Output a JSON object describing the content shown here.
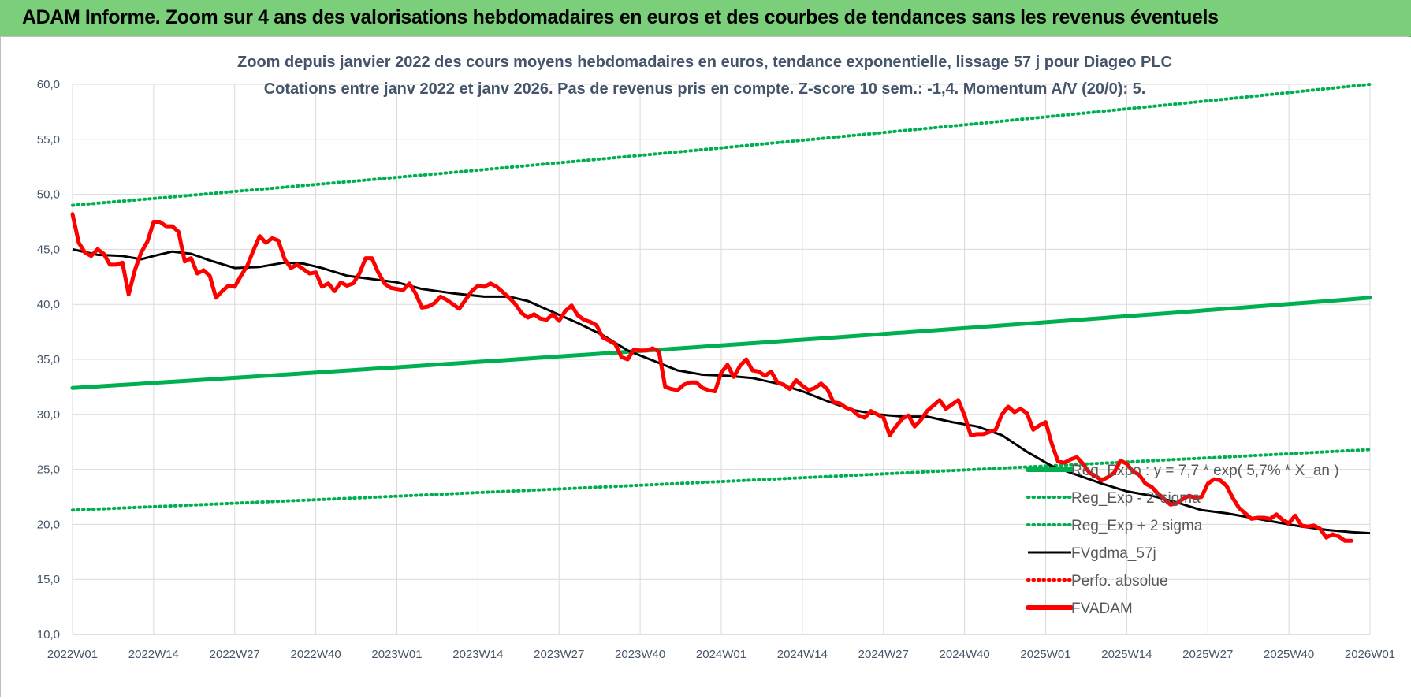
{
  "banner": {
    "title": "ADAM Informe. Zoom sur 4 ans des valorisations hebdomadaires en euros et des courbes de tendances sans les revenus éventuels"
  },
  "colors": {
    "banner_bg": "#7ccf7a",
    "green": "#00b050",
    "black": "#000000",
    "red": "#ff0000",
    "grid": "#d9d9d9",
    "title_text": "#44546a"
  },
  "chart_data": {
    "type": "line",
    "title": "Zoom depuis janvier 2022 des cours moyens hebdomadaires en euros, tendance exponentielle, lissage 57 j pour Diageo PLC",
    "subtitle": "Cotations entre janv 2022 et janv 2026. Pas de revenus pris en compte. Z-score 10 sem.: -1,4. Momentum A/V (20/0): 5.",
    "xlabel": "",
    "ylabel": "",
    "ylim": [
      10,
      60
    ],
    "yticks": [
      "10,0",
      "15,0",
      "20,0",
      "25,0",
      "30,0",
      "35,0",
      "40,0",
      "45,0",
      "50,0",
      "55,0",
      "60,0"
    ],
    "xticks": [
      "2022W01",
      "2022W14",
      "2022W27",
      "2022W40",
      "2023W01",
      "2023W14",
      "2023W27",
      "2023W40",
      "2024W01",
      "2024W14",
      "2024W27",
      "2024W40",
      "2025W01",
      "2025W14",
      "2025W27",
      "2025W40",
      "2026W01"
    ],
    "grid": true,
    "legend_position": "bottom-right",
    "series": [
      {
        "name": "Reg_Expo : y = 7,7 * exp( 5,7% *  X_an )",
        "style": "solid-thick",
        "color": "#00b050",
        "points": [
          [
            0,
            32.4
          ],
          [
            208,
            40.6
          ]
        ]
      },
      {
        "name": "Reg_Exp - 2*sigma",
        "style": "dotted",
        "color": "#00b050",
        "points": [
          [
            0,
            21.3
          ],
          [
            208,
            26.8
          ]
        ]
      },
      {
        "name": "Reg_Exp + 2 sigma",
        "style": "dotted",
        "color": "#00b050",
        "points": [
          [
            0,
            49.0
          ],
          [
            208,
            60.0
          ]
        ]
      },
      {
        "name": "FVgdma_57j",
        "style": "solid",
        "color": "#000000",
        "points": [
          [
            0,
            45.0
          ],
          [
            4,
            44.5
          ],
          [
            8,
            44.4
          ],
          [
            11,
            44.1
          ],
          [
            13,
            44.4
          ],
          [
            16,
            44.8
          ],
          [
            19,
            44.6
          ],
          [
            22,
            44.0
          ],
          [
            26,
            43.3
          ],
          [
            30,
            43.4
          ],
          [
            34,
            43.8
          ],
          [
            37,
            43.7
          ],
          [
            40,
            43.3
          ],
          [
            44,
            42.6
          ],
          [
            48,
            42.3
          ],
          [
            52,
            42.0
          ],
          [
            56,
            41.4
          ],
          [
            61,
            41.0
          ],
          [
            66,
            40.7
          ],
          [
            70,
            40.7
          ],
          [
            73,
            40.3
          ],
          [
            77,
            39.3
          ],
          [
            81,
            38.3
          ],
          [
            85,
            37.2
          ],
          [
            89,
            35.8
          ],
          [
            93,
            34.9
          ],
          [
            97,
            34.0
          ],
          [
            101,
            33.6
          ],
          [
            105,
            33.5
          ],
          [
            109,
            33.3
          ],
          [
            113,
            32.8
          ],
          [
            117,
            32.1
          ],
          [
            121,
            31.2
          ],
          [
            125,
            30.4
          ],
          [
            129,
            30.0
          ],
          [
            133,
            29.8
          ],
          [
            137,
            29.8
          ],
          [
            141,
            29.3
          ],
          [
            145,
            28.9
          ],
          [
            149,
            28.1
          ],
          [
            153,
            26.6
          ],
          [
            157,
            25.3
          ],
          [
            161,
            24.5
          ],
          [
            165,
            23.7
          ],
          [
            169,
            23.0
          ],
          [
            173,
            22.6
          ],
          [
            177,
            22.0
          ],
          [
            181,
            21.3
          ],
          [
            185,
            21.0
          ],
          [
            189,
            20.6
          ],
          [
            193,
            20.2
          ],
          [
            197,
            19.8
          ],
          [
            201,
            19.5
          ],
          [
            205,
            19.3
          ],
          [
            208,
            19.2
          ]
        ]
      },
      {
        "name": "Perfo. absolue",
        "style": "dotted",
        "color": "#ff0000",
        "points": []
      },
      {
        "name": "FVADAM",
        "style": "solid-thick",
        "color": "#ff0000",
        "points": [
          [
            0,
            48.2
          ],
          [
            1,
            45.6
          ],
          [
            2,
            44.7
          ],
          [
            3,
            44.4
          ],
          [
            4,
            45.0
          ],
          [
            5,
            44.6
          ],
          [
            6,
            43.6
          ],
          [
            7,
            43.6
          ],
          [
            8,
            43.8
          ],
          [
            9,
            40.9
          ],
          [
            10,
            43.1
          ],
          [
            11,
            44.7
          ],
          [
            12,
            45.7
          ],
          [
            13,
            47.5
          ],
          [
            14,
            47.5
          ],
          [
            15,
            47.1
          ],
          [
            16,
            47.1
          ],
          [
            17,
            46.6
          ],
          [
            18,
            43.9
          ],
          [
            19,
            44.2
          ],
          [
            20,
            42.8
          ],
          [
            21,
            43.1
          ],
          [
            22,
            42.6
          ],
          [
            23,
            40.6
          ],
          [
            24,
            41.2
          ],
          [
            25,
            41.7
          ],
          [
            26,
            41.6
          ],
          [
            27,
            42.6
          ],
          [
            28,
            43.5
          ],
          [
            29,
            44.9
          ],
          [
            30,
            46.2
          ],
          [
            31,
            45.6
          ],
          [
            32,
            46.0
          ],
          [
            33,
            45.8
          ],
          [
            34,
            44.1
          ],
          [
            35,
            43.3
          ],
          [
            36,
            43.6
          ],
          [
            37,
            43.2
          ],
          [
            38,
            42.8
          ],
          [
            39,
            42.9
          ],
          [
            40,
            41.6
          ],
          [
            41,
            41.9
          ],
          [
            42,
            41.2
          ],
          [
            43,
            42.0
          ],
          [
            44,
            41.7
          ],
          [
            45,
            41.9
          ],
          [
            46,
            42.8
          ],
          [
            47,
            44.2
          ],
          [
            48,
            44.2
          ],
          [
            49,
            42.9
          ],
          [
            50,
            41.9
          ],
          [
            51,
            41.5
          ],
          [
            52,
            41.4
          ],
          [
            53,
            41.3
          ],
          [
            54,
            41.9
          ],
          [
            55,
            41.0
          ],
          [
            56,
            39.7
          ],
          [
            57,
            39.8
          ],
          [
            58,
            40.1
          ],
          [
            59,
            40.7
          ],
          [
            60,
            40.4
          ],
          [
            61,
            40.0
          ],
          [
            62,
            39.6
          ],
          [
            63,
            40.4
          ],
          [
            64,
            41.2
          ],
          [
            65,
            41.7
          ],
          [
            66,
            41.6
          ],
          [
            67,
            41.9
          ],
          [
            68,
            41.6
          ],
          [
            69,
            41.1
          ],
          [
            70,
            40.6
          ],
          [
            71,
            40.0
          ],
          [
            72,
            39.2
          ],
          [
            73,
            38.8
          ],
          [
            74,
            39.1
          ],
          [
            75,
            38.7
          ],
          [
            76,
            38.6
          ],
          [
            77,
            39.1
          ],
          [
            78,
            38.5
          ],
          [
            79,
            39.4
          ],
          [
            80,
            39.9
          ],
          [
            81,
            39.0
          ],
          [
            82,
            38.6
          ],
          [
            83,
            38.4
          ],
          [
            84,
            38.1
          ],
          [
            85,
            37.0
          ],
          [
            86,
            36.7
          ],
          [
            87,
            36.4
          ],
          [
            88,
            35.2
          ],
          [
            89,
            35.0
          ],
          [
            90,
            35.9
          ],
          [
            91,
            35.8
          ],
          [
            92,
            35.8
          ],
          [
            93,
            36.0
          ],
          [
            94,
            35.7
          ],
          [
            95,
            32.5
          ],
          [
            96,
            32.3
          ],
          [
            97,
            32.2
          ],
          [
            98,
            32.7
          ],
          [
            99,
            32.9
          ],
          [
            100,
            32.9
          ],
          [
            101,
            32.4
          ],
          [
            102,
            32.2
          ],
          [
            103,
            32.1
          ],
          [
            104,
            33.8
          ],
          [
            105,
            34.5
          ],
          [
            106,
            33.4
          ],
          [
            107,
            34.4
          ],
          [
            108,
            35.0
          ],
          [
            109,
            34.0
          ],
          [
            110,
            33.9
          ],
          [
            111,
            33.5
          ],
          [
            112,
            33.9
          ],
          [
            113,
            32.9
          ],
          [
            114,
            32.7
          ],
          [
            115,
            32.3
          ],
          [
            116,
            33.1
          ],
          [
            117,
            32.6
          ],
          [
            118,
            32.2
          ],
          [
            119,
            32.4
          ],
          [
            120,
            32.8
          ],
          [
            121,
            32.3
          ],
          [
            122,
            31.1
          ],
          [
            123,
            31.0
          ],
          [
            124,
            30.6
          ],
          [
            125,
            30.4
          ],
          [
            126,
            29.9
          ],
          [
            127,
            29.7
          ],
          [
            128,
            30.3
          ],
          [
            129,
            30.0
          ],
          [
            130,
            29.7
          ],
          [
            131,
            28.1
          ],
          [
            132,
            28.9
          ],
          [
            133,
            29.6
          ],
          [
            134,
            29.9
          ],
          [
            135,
            28.9
          ],
          [
            136,
            29.5
          ],
          [
            137,
            30.3
          ],
          [
            138,
            30.8
          ],
          [
            139,
            31.3
          ],
          [
            140,
            30.5
          ],
          [
            141,
            30.9
          ],
          [
            142,
            31.3
          ],
          [
            143,
            29.9
          ],
          [
            144,
            28.1
          ],
          [
            145,
            28.2
          ],
          [
            146,
            28.2
          ],
          [
            147,
            28.4
          ],
          [
            148,
            28.6
          ],
          [
            149,
            30.0
          ],
          [
            150,
            30.7
          ],
          [
            151,
            30.2
          ],
          [
            152,
            30.5
          ],
          [
            153,
            30.1
          ],
          [
            154,
            28.6
          ],
          [
            155,
            29.0
          ],
          [
            156,
            29.3
          ],
          [
            157,
            27.3
          ],
          [
            158,
            25.7
          ],
          [
            159,
            25.6
          ],
          [
            160,
            25.9
          ],
          [
            161,
            26.1
          ],
          [
            162,
            25.5
          ],
          [
            163,
            24.7
          ],
          [
            164,
            24.4
          ],
          [
            165,
            24.0
          ],
          [
            166,
            24.3
          ],
          [
            167,
            24.7
          ],
          [
            168,
            25.8
          ],
          [
            169,
            25.5
          ],
          [
            170,
            24.8
          ],
          [
            171,
            24.5
          ],
          [
            172,
            23.7
          ],
          [
            173,
            23.4
          ],
          [
            174,
            22.8
          ],
          [
            175,
            22.3
          ],
          [
            176,
            21.8
          ],
          [
            177,
            21.9
          ],
          [
            178,
            22.3
          ],
          [
            179,
            22.6
          ],
          [
            180,
            22.4
          ],
          [
            181,
            22.5
          ],
          [
            182,
            23.7
          ],
          [
            183,
            24.1
          ],
          [
            184,
            24.0
          ],
          [
            185,
            23.5
          ],
          [
            186,
            22.4
          ],
          [
            187,
            21.5
          ],
          [
            188,
            21.0
          ],
          [
            189,
            20.5
          ],
          [
            190,
            20.6
          ],
          [
            191,
            20.6
          ],
          [
            192,
            20.5
          ],
          [
            193,
            20.9
          ],
          [
            194,
            20.4
          ],
          [
            195,
            20.1
          ],
          [
            196,
            20.8
          ],
          [
            197,
            19.9
          ],
          [
            198,
            19.8
          ],
          [
            199,
            19.9
          ],
          [
            200,
            19.6
          ],
          [
            201,
            18.8
          ],
          [
            202,
            19.1
          ],
          [
            203,
            18.9
          ],
          [
            204,
            18.5
          ],
          [
            205,
            18.5
          ]
        ]
      }
    ]
  }
}
